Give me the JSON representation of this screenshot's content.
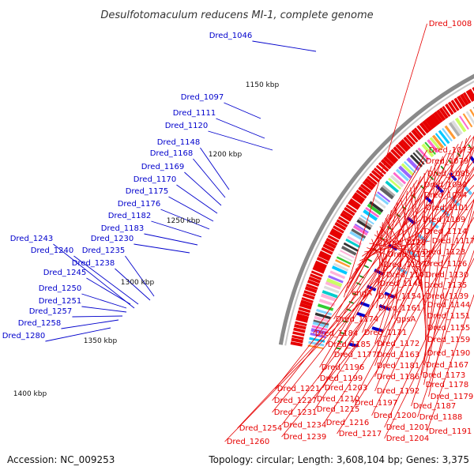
{
  "title": "Desulfotomaculum reducens MI-1, complete genome",
  "footer": {
    "accession": "Accession: NC_009253",
    "topology": "Topology: circular; Length: 3,608,104 bp; Genes: 3,375"
  },
  "colors": {
    "forward": "#0000cc",
    "reverse": "#e60000",
    "green": "#1a8a1a"
  },
  "kbp_labels": [
    "1150 kbp",
    "1200 kbp",
    "1250 kbp",
    "1300 kbp",
    "1350 kbp",
    "1400 kbp"
  ],
  "left_genes": [
    "Dred_1046",
    "Dred_1097",
    "Dred_1111",
    "Dred_1120",
    "Dred_1148",
    "Dred_1168",
    "Dred_1169",
    "Dred_1170",
    "Dred_1175",
    "Dred_1176",
    "Dred_1182",
    "Dred_1183",
    "Dred_1243",
    "Dred_1230",
    "Dred_1240",
    "Dred_1235",
    "Dred_1238",
    "Dred_1245",
    "Dred_1250",
    "Dred_1251",
    "Dred_1257",
    "Dred_1258",
    "Dred_1280"
  ],
  "right_genes": [
    "Dred_1008",
    "Dred_1073",
    "Dred_1079",
    "Dred_1085",
    "Dred_1090",
    "Dred_1094",
    "Dred_1101",
    "Dred_1109",
    "Dred_1114",
    "Dred_1128",
    "Dred_1117",
    "Dred_1132",
    "Dred_1123",
    "Dred_1137",
    "Dred_1126",
    "Dred_1141",
    "Dred_1130",
    "Dred_1149",
    "Dred_1135",
    "engA",
    "Dred_1154",
    "Dred_1139",
    "Dred_1161",
    "Dred_1144",
    "Dred_1174",
    "gpsA",
    "Dred_1151",
    "Dred_1155",
    "Dred_1184",
    "Dred_1171",
    "Dred_1159",
    "Dred_1185",
    "Dred_1172",
    "Dred_1190",
    "Dred_1177",
    "Dred_1163",
    "Dred_1196",
    "Dred_1181",
    "Dred_1167",
    "Dred_1199",
    "Dred_1186",
    "Dred_1173",
    "Dred_1203",
    "Dred_1178",
    "Dred_1221",
    "Dred_1192",
    "Dred_1210",
    "Dred_1179",
    "Dred_1227",
    "Dred_1197",
    "Dred_1187",
    "Dred_1215",
    "Dred_1231",
    "Dred_1200",
    "Dred_1188",
    "Dred_1234",
    "Dred_1216",
    "Dred_1201",
    "Dred_1191",
    "Dred_1254",
    "Dred_1217",
    "Dred_1204",
    "Dred_1239",
    "Dred_1260"
  ]
}
